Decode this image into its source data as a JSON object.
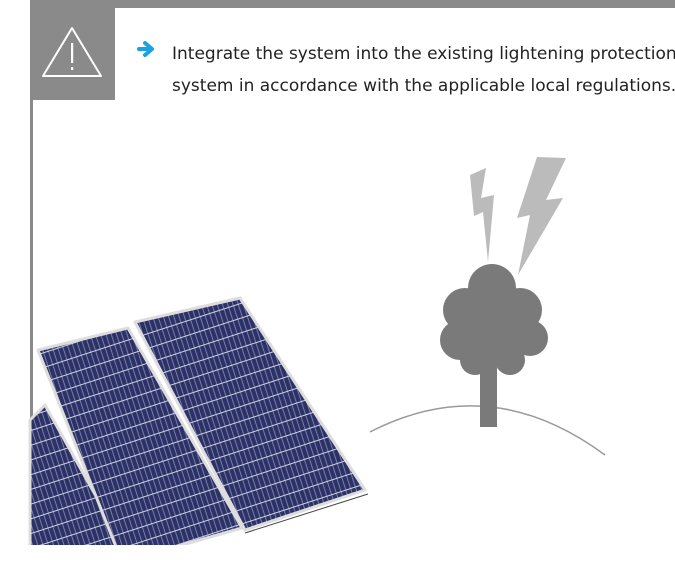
{
  "note": {
    "text": "Integrate the system into the existing lightening protection system in accordance with the applicable local regulations."
  }
}
